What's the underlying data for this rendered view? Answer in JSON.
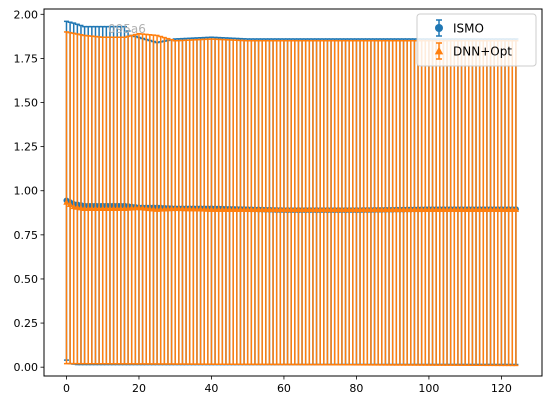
{
  "chart_data": {
    "type": "scatter",
    "title": "",
    "xlabel": "",
    "ylabel": "",
    "xlim": [
      -6.2,
      131.2
    ],
    "ylim": [
      -0.05,
      2.03
    ],
    "x_ticks": [
      0,
      20,
      40,
      60,
      80,
      100,
      120
    ],
    "x_tick_labels": [
      "0",
      "20",
      "40",
      "60",
      "80",
      "100",
      "120"
    ],
    "y_ticks": [
      0.0,
      0.25,
      0.5,
      0.75,
      1.0,
      1.25,
      1.5,
      1.75,
      2.0
    ],
    "y_tick_labels": [
      "0.00",
      "0.25",
      "0.50",
      "0.75",
      "1.00",
      "1.25",
      "1.50",
      "1.75",
      "2.00"
    ],
    "grid": false,
    "legend_position": "top-right",
    "x": {
      "start": 0,
      "end": 124,
      "step": 1
    },
    "series": [
      {
        "name": "ISMO",
        "color": "#1f77b4",
        "marker": "circle",
        "y_mean": {
          "anchors_x": [
            0,
            2,
            5,
            10,
            16,
            20,
            25,
            30,
            40,
            50,
            60,
            80,
            100,
            124
          ],
          "anchors_y": [
            0.945,
            0.925,
            0.915,
            0.915,
            0.915,
            0.905,
            0.905,
            0.9,
            0.9,
            0.895,
            0.89,
            0.89,
            0.895,
            0.895
          ]
        },
        "y_upper": {
          "anchors_x": [
            0,
            2,
            5,
            10,
            16,
            18,
            25,
            30,
            40,
            50,
            60,
            80,
            100,
            124
          ],
          "anchors_y": [
            1.96,
            1.95,
            1.93,
            1.93,
            1.93,
            1.88,
            1.84,
            1.86,
            1.87,
            1.86,
            1.86,
            1.86,
            1.86,
            1.86
          ]
        },
        "y_lower": {
          "anchors_x": [
            0,
            1,
            3,
            20,
            60,
            124
          ],
          "anchors_y": [
            0.04,
            0.02,
            0.015,
            0.015,
            0.015,
            0.015
          ]
        }
      },
      {
        "name": "DNN+Opt",
        "color": "#ff7f0e",
        "marker": "triangle",
        "y_mean": {
          "anchors_x": [
            0,
            2,
            5,
            10,
            16,
            20,
            25,
            30,
            40,
            50,
            60,
            80,
            100,
            124
          ],
          "anchors_y": [
            0.935,
            0.91,
            0.9,
            0.9,
            0.9,
            0.905,
            0.895,
            0.9,
            0.895,
            0.895,
            0.895,
            0.895,
            0.895,
            0.895
          ]
        },
        "y_upper": {
          "anchors_x": [
            0,
            5,
            10,
            16,
            20,
            25,
            30,
            40,
            50,
            60,
            80,
            100,
            124
          ],
          "anchors_y": [
            1.9,
            1.88,
            1.87,
            1.87,
            1.89,
            1.88,
            1.85,
            1.86,
            1.85,
            1.85,
            1.85,
            1.85,
            1.85
          ]
        },
        "y_lower": {
          "anchors_x": [
            0,
            124
          ],
          "anchors_y": [
            0.02,
            0.01
          ]
        }
      }
    ],
    "watermark_text": "095a6"
  }
}
